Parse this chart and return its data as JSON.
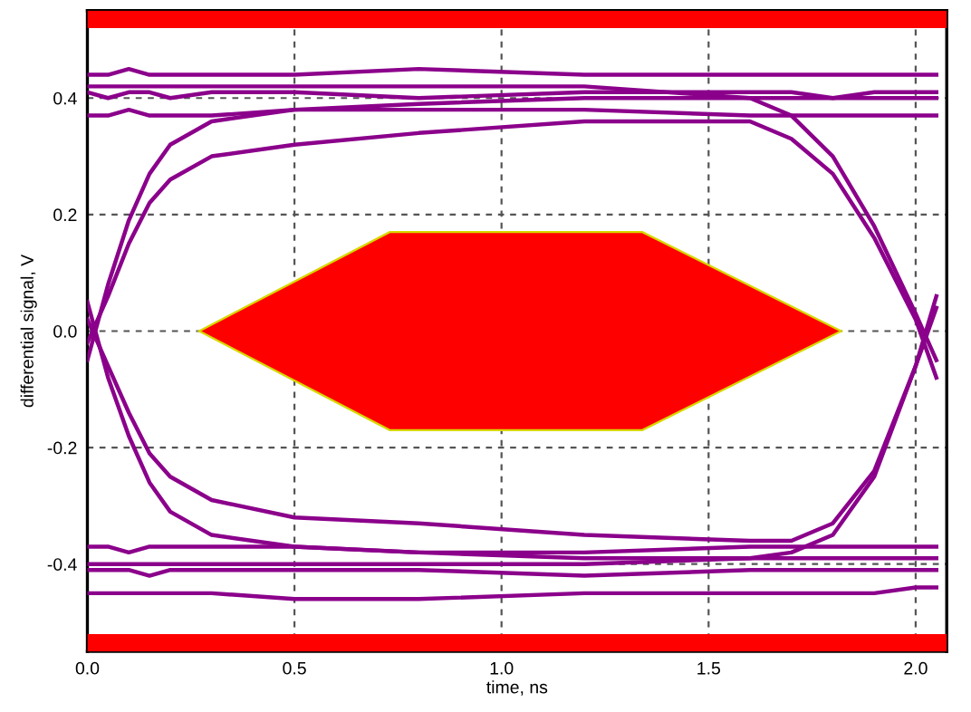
{
  "chart_data": {
    "type": "line",
    "xlabel": "time, ns",
    "ylabel": "differential signal, V",
    "x": [
      0,
      0.05,
      0.1,
      0.15,
      0.2,
      0.3,
      0.5,
      0.8,
      1.2,
      1.6,
      1.7,
      1.8,
      1.9,
      2.0,
      2.05
    ],
    "series": [
      {
        "color": "#8b008b",
        "values": [
          0.44,
          0.44,
          0.45,
          0.44,
          0.44,
          0.44,
          0.44,
          0.45,
          0.44,
          0.44,
          0.44,
          0.44,
          0.44,
          0.44,
          0.44
        ]
      },
      {
        "color": "#8b008b",
        "values": [
          0.41,
          0.4,
          0.41,
          0.41,
          0.4,
          0.41,
          0.41,
          0.4,
          0.41,
          0.41,
          0.41,
          0.4,
          0.41,
          0.41,
          0.41
        ]
      },
      {
        "color": "#8b008b",
        "values": [
          0.37,
          0.37,
          0.38,
          0.37,
          0.37,
          0.37,
          0.38,
          0.38,
          0.38,
          0.37,
          0.37,
          0.37,
          0.37,
          0.37,
          0.37
        ]
      },
      {
        "color": "#8b008b",
        "values": [
          -0.37,
          -0.37,
          -0.38,
          -0.37,
          -0.37,
          -0.37,
          -0.37,
          -0.38,
          -0.38,
          -0.37,
          -0.37,
          -0.37,
          -0.37,
          -0.37,
          -0.37
        ]
      },
      {
        "color": "#8b008b",
        "values": [
          -0.41,
          -0.41,
          -0.41,
          -0.42,
          -0.41,
          -0.41,
          -0.41,
          -0.41,
          -0.42,
          -0.41,
          -0.41,
          -0.41,
          -0.41,
          -0.41,
          -0.41
        ]
      },
      {
        "color": "#8b008b",
        "values": [
          -0.45,
          -0.45,
          -0.45,
          -0.45,
          -0.45,
          -0.45,
          -0.46,
          -0.46,
          -0.45,
          -0.45,
          -0.45,
          -0.45,
          -0.45,
          -0.44,
          -0.44
        ]
      },
      {
        "color": "#8b008b",
        "values": [
          -0.05,
          0.08,
          0.19,
          0.27,
          0.32,
          0.36,
          0.38,
          0.39,
          0.4,
          0.4,
          0.4,
          0.4,
          0.4,
          0.4,
          0.4
        ]
      },
      {
        "color": "#8b008b",
        "values": [
          -0.02,
          0.06,
          0.15,
          0.22,
          0.26,
          0.3,
          0.32,
          0.34,
          0.36,
          0.36,
          0.33,
          0.27,
          0.16,
          0.02,
          -0.08
        ]
      },
      {
        "color": "#8b008b",
        "values": [
          0.05,
          -0.08,
          -0.18,
          -0.26,
          -0.31,
          -0.35,
          -0.37,
          -0.38,
          -0.39,
          -0.39,
          -0.39,
          -0.39,
          -0.39,
          -0.39,
          -0.39
        ]
      },
      {
        "color": "#8b008b",
        "values": [
          0.02,
          -0.06,
          -0.14,
          -0.21,
          -0.25,
          -0.29,
          -0.32,
          -0.33,
          -0.35,
          -0.36,
          -0.36,
          -0.33,
          -0.24,
          -0.06,
          0.06
        ]
      },
      {
        "color": "#8b008b",
        "values": [
          0.42,
          0.42,
          0.42,
          0.42,
          0.42,
          0.42,
          0.42,
          0.42,
          0.42,
          0.4,
          0.37,
          0.3,
          0.18,
          0.03,
          -0.05
        ]
      },
      {
        "color": "#8b008b",
        "values": [
          -0.4,
          -0.4,
          -0.4,
          -0.4,
          -0.4,
          -0.4,
          -0.4,
          -0.4,
          -0.4,
          -0.39,
          -0.38,
          -0.35,
          -0.25,
          -0.06,
          0.04
        ]
      },
      {
        "type": "area",
        "color": "#ff0000",
        "x": [
          0.27,
          0.73,
          1.34,
          1.82,
          1.34,
          0.73
        ],
        "values": [
          0,
          0.17,
          0.17,
          0,
          -0.17,
          -0.17
        ]
      }
    ],
    "bands": [
      {
        "axis": "y",
        "from": 0.52,
        "to": 0.55,
        "color": "#ff0000"
      },
      {
        "axis": "y",
        "from": -0.55,
        "to": -0.52,
        "color": "#ff0000"
      }
    ],
    "xlim": [
      0,
      2.075
    ],
    "ylim": [
      -0.55,
      0.55
    ],
    "xticks": [
      {
        "value": 0,
        "label": "0.0"
      },
      0.5,
      {
        "value": 1,
        "label": "1.0"
      },
      1.5,
      {
        "value": 2,
        "label": "2.0"
      }
    ],
    "yticks": [
      -0.4,
      -0.2,
      {
        "value": 0,
        "label": "0.0"
      },
      0.2,
      0.4
    ],
    "grid": true,
    "line_style": "solid",
    "marker": "none"
  }
}
